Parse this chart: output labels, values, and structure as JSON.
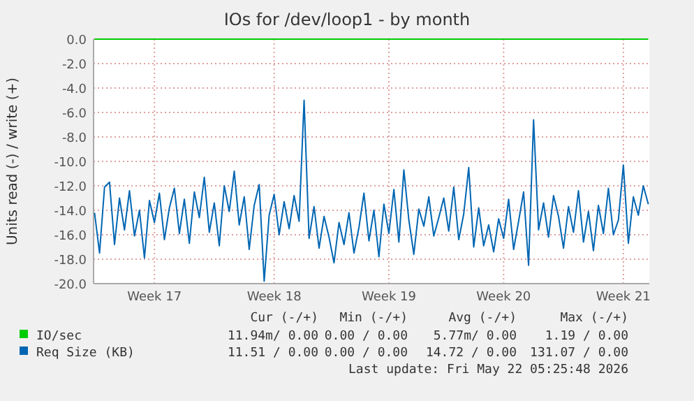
{
  "chart_data": {
    "type": "line",
    "title": "IOs for /dev/loop1 - by month",
    "ylabel": "Units read (-) / write (+)",
    "categories": [
      null,
      null,
      null,
      null,
      null,
      null,
      null,
      null,
      null,
      null,
      null,
      null,
      "Week 17",
      null,
      null,
      null,
      null,
      null,
      null,
      null,
      null,
      null,
      null,
      null,
      null,
      null,
      null,
      null,
      null,
      null,
      null,
      null,
      null,
      null,
      null,
      null,
      "Week 18",
      null,
      null,
      null,
      null,
      null,
      null,
      null,
      null,
      null,
      null,
      null,
      null,
      null,
      null,
      null,
      null,
      null,
      null,
      null,
      null,
      null,
      null,
      "Week 19",
      null,
      null,
      null,
      null,
      null,
      null,
      null,
      null,
      null,
      null,
      null,
      null,
      null,
      null,
      null,
      null,
      null,
      null,
      null,
      null,
      null,
      null,
      "Week 20",
      null,
      null,
      null,
      null,
      null,
      null,
      null,
      null,
      null,
      null,
      null,
      null,
      null,
      null,
      null,
      null,
      null,
      null,
      null,
      null,
      null,
      null,
      null,
      "Week 21",
      null,
      null,
      null,
      null,
      null
    ],
    "ylim": [
      -20,
      0
    ],
    "yticks": [
      {
        "value": 0,
        "label": "0.0"
      },
      {
        "value": -2,
        "label": "-2.0"
      },
      {
        "value": -4,
        "label": "-4.0"
      },
      {
        "value": -6,
        "label": "-6.0"
      },
      {
        "value": -8,
        "label": "-8.0"
      },
      {
        "value": -10,
        "label": "-10.0"
      },
      {
        "value": -12,
        "label": "-12.0"
      },
      {
        "value": -14,
        "label": "-14.0"
      },
      {
        "value": -16,
        "label": "-16.0"
      },
      {
        "value": -18,
        "label": "-18.0"
      },
      {
        "value": -20,
        "label": "-20.0"
      }
    ],
    "grid": true,
    "legend": "bottom",
    "marker": "none",
    "line_style": "solid",
    "series": [
      {
        "name": "IO/sec",
        "color": "#00cc00",
        "values": [
          0,
          0,
          0,
          0,
          0,
          0,
          0,
          0,
          0,
          0,
          0,
          0,
          0,
          0,
          0,
          0,
          0,
          0,
          0,
          0,
          0,
          0,
          0,
          0,
          0,
          0,
          0,
          0,
          0,
          0,
          0,
          0,
          0,
          0,
          0,
          0,
          0,
          0,
          0,
          0,
          0,
          0,
          0,
          0,
          0,
          0,
          0,
          0,
          0,
          0,
          0,
          0,
          0,
          0,
          0,
          0,
          0,
          0,
          0,
          0,
          0,
          0,
          0,
          0,
          0,
          0,
          0,
          0,
          0,
          0,
          0,
          0,
          0,
          0,
          0,
          0,
          0,
          0,
          0,
          0,
          0,
          0,
          0,
          0,
          0,
          0,
          0,
          0,
          0,
          0,
          0,
          0,
          0,
          0,
          0,
          0,
          0,
          0,
          0,
          0,
          0,
          0,
          0,
          0,
          0,
          0,
          0,
          0,
          0,
          0,
          0,
          0
        ]
      },
      {
        "name": "Req Size (KB)",
        "color": "#0066b3",
        "values": [
          -14.2,
          -17.5,
          -12.1,
          -11.7,
          -16.8,
          -13.0,
          -15.6,
          -12.4,
          -16.1,
          -14.0,
          -17.9,
          -13.2,
          -15.0,
          -12.6,
          -16.4,
          -13.8,
          -12.2,
          -15.9,
          -13.1,
          -16.7,
          -12.5,
          -14.6,
          -11.3,
          -15.8,
          -13.4,
          -16.9,
          -12.0,
          -14.1,
          -10.8,
          -15.2,
          -12.9,
          -17.2,
          -13.6,
          -11.9,
          -19.8,
          -14.4,
          -12.7,
          -16.0,
          -13.3,
          -15.5,
          -12.8,
          -14.9,
          -5.0,
          -16.3,
          -13.7,
          -17.1,
          -14.5,
          -16.2,
          -18.3,
          -15.0,
          -16.8,
          -14.2,
          -17.5,
          -15.4,
          -12.6,
          -16.5,
          -14.0,
          -17.8,
          -13.5,
          -15.9,
          -12.3,
          -16.6,
          -10.7,
          -14.8,
          -17.6,
          -13.9,
          -15.3,
          -12.9,
          -16.1,
          -14.6,
          -13.0,
          -15.7,
          -12.1,
          -16.4,
          -14.3,
          -10.5,
          -17.0,
          -13.8,
          -16.9,
          -15.2,
          -17.4,
          -14.7,
          -16.3,
          -13.1,
          -17.2,
          -14.9,
          -12.5,
          -18.5,
          -6.6,
          -15.6,
          -13.4,
          -16.2,
          -12.8,
          -14.5,
          -17.1,
          -13.7,
          -15.8,
          -12.4,
          -16.6,
          -14.1,
          -17.3,
          -13.6,
          -15.9,
          -12.2,
          -16.0,
          -14.8,
          -10.3,
          -16.7,
          -12.9,
          -14.4,
          -12.0,
          -13.5
        ]
      }
    ],
    "annotations": [
      "Cur (-/+)",
      "Min (-/+)",
      "Avg (-/+)",
      "Max (-/+)",
      "11.94m/ 0.00",
      "0.00 / 0.00",
      "5.77m/ 0.00",
      "1.19 / 0.00",
      "11.51 / 0.00",
      "0.00 / 0.00",
      "14.72 / 0.00",
      "131.07 / 0.00",
      "Last update: Fri May 22 05:25:48 2026"
    ]
  }
}
